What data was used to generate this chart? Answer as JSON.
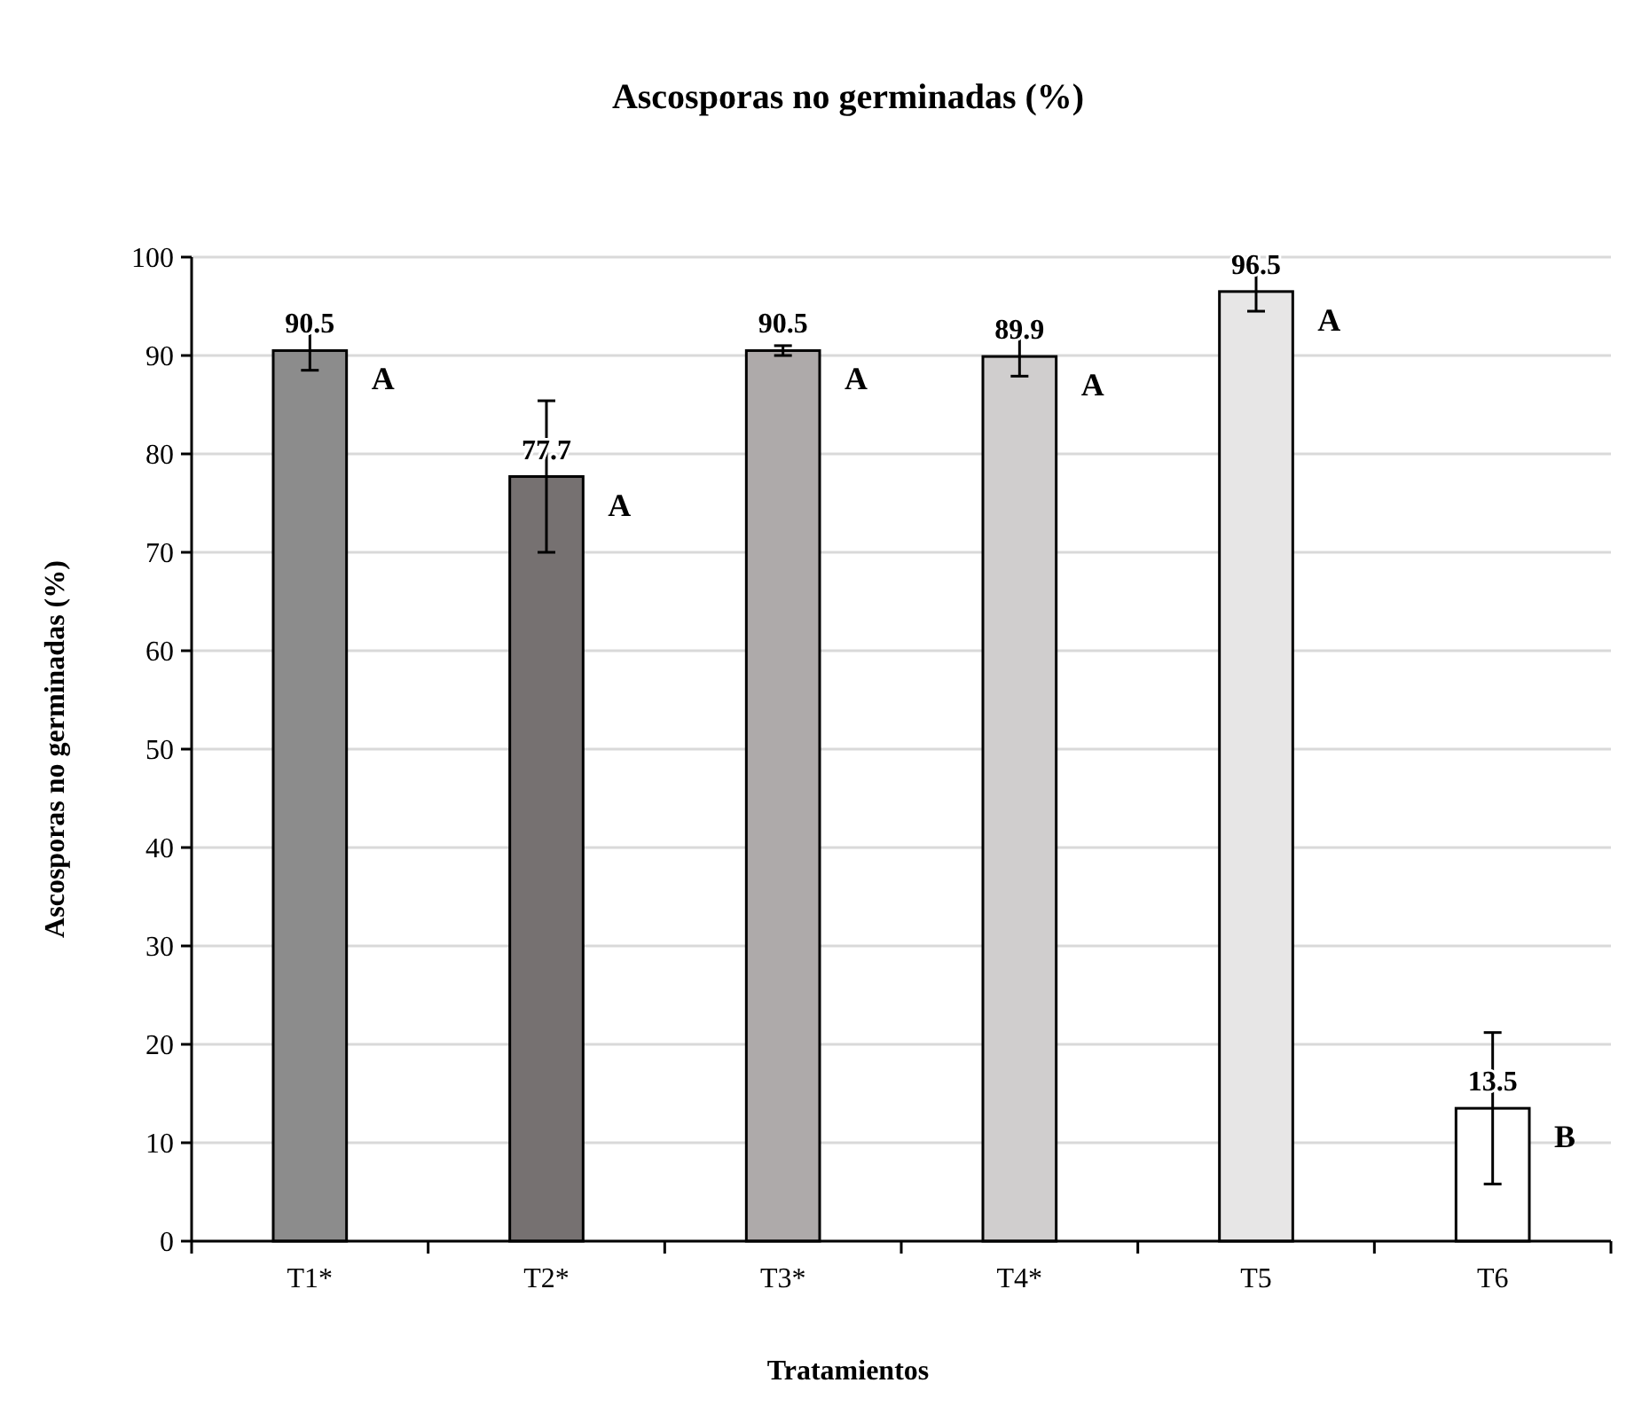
{
  "chart_data": {
    "type": "bar",
    "title": "Ascosporas no germinadas (%)",
    "xlabel": "Tratamientos",
    "ylabel": "Ascosporas no germinadas (%)",
    "categories": [
      "T1*",
      "T2*",
      "T3*",
      "T4*",
      "T5",
      "T6"
    ],
    "values": [
      90.5,
      77.7,
      90.5,
      89.9,
      96.5,
      13.5
    ],
    "colors": [
      "#8c8c8c",
      "#767171",
      "#aeaaaa",
      "#d0cece",
      "#e7e6e6",
      "#ffffff"
    ],
    "errors": [
      2,
      7.7,
      0.5,
      2,
      2,
      7.7
    ],
    "data_labels": true,
    "annotations": [
      {
        "text": "A",
        "x": "T1*",
        "y": 90.5
      },
      {
        "text": "A",
        "x": "T2*",
        "y": 77.7
      },
      {
        "text": "A",
        "x": "T3*",
        "y": 90.5
      },
      {
        "text": "A",
        "x": "T4*",
        "y": 89.9
      },
      {
        "text": "A",
        "x": "T5",
        "y": 96.5
      },
      {
        "text": "B",
        "x": "T6",
        "y": 13.5
      }
    ],
    "ylim": [
      0,
      100
    ],
    "yticks": [
      0,
      10,
      20,
      30,
      40,
      50,
      60,
      70,
      80,
      90,
      100
    ],
    "grid": "y"
  }
}
